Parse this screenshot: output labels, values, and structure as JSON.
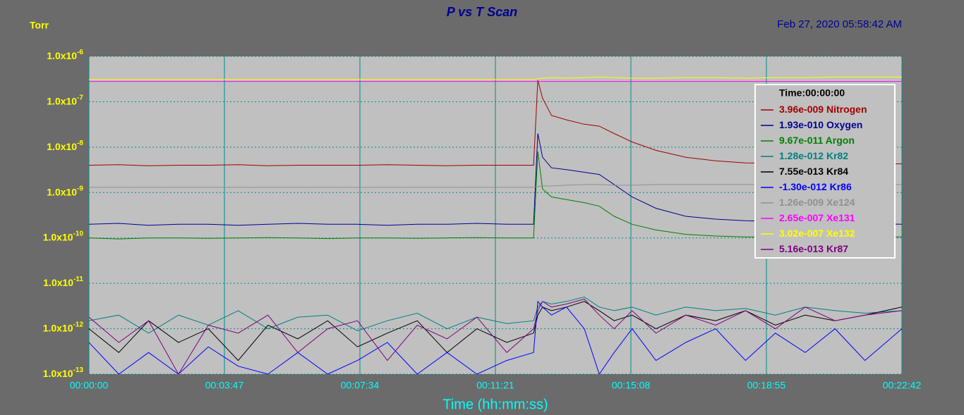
{
  "chart_data": {
    "type": "line",
    "title": "P vs T Scan",
    "unit_label": "Torr",
    "timestamp": "Feb 27, 2020  05:58:42 AM",
    "xlabel": "Time (hh:mm:ss)",
    "legend_title": "Time:00:00:00",
    "legend": "upper right",
    "log_y": true,
    "grid": true,
    "x": [
      0,
      50,
      100,
      150,
      200,
      250,
      300,
      350,
      400,
      450,
      500,
      550,
      600,
      650,
      700,
      745,
      752,
      760,
      775,
      800,
      830,
      855,
      880,
      910,
      950,
      1000,
      1050,
      1100,
      1150,
      1200,
      1250,
      1300,
      1362
    ],
    "xlim": [
      0,
      1362
    ],
    "xticks": [
      {
        "value": 0,
        "label": "00:00:00"
      },
      {
        "value": 227,
        "label": "00:03:47"
      },
      {
        "value": 454,
        "label": "00:07:34"
      },
      {
        "value": 681,
        "label": "00:11:21"
      },
      {
        "value": 908,
        "label": "00:15:08"
      },
      {
        "value": 1135,
        "label": "00:18:55"
      },
      {
        "value": 1362,
        "label": "00:22:42"
      }
    ],
    "ylim": [
      1e-13,
      1e-06
    ],
    "yticks": [
      {
        "value": 1e-06,
        "label": "1.0x10-6"
      },
      {
        "value": 1e-07,
        "label": "1.0x10-7"
      },
      {
        "value": 1e-08,
        "label": "1.0x10-8"
      },
      {
        "value": 1e-09,
        "label": "1.0x10-9"
      },
      {
        "value": 1e-10,
        "label": "1.0x10-10"
      },
      {
        "value": 1e-11,
        "label": "1.0x10-11"
      },
      {
        "value": 1e-12,
        "label": "1.0x10-12"
      },
      {
        "value": 1e-13,
        "label": "1.0x10-13"
      }
    ],
    "series": [
      {
        "name": "Nitrogen",
        "readout": "3.96e-009",
        "color": "#a00000",
        "values": [
          4e-09,
          4.1e-09,
          3.9e-09,
          4e-09,
          4e-09,
          4.1e-09,
          3.9e-09,
          4e-09,
          4e-09,
          4e-09,
          4.1e-09,
          4e-09,
          3.9e-09,
          4e-09,
          4e-09,
          4e-09,
          3e-07,
          1.2e-07,
          5e-08,
          4e-08,
          3.2e-08,
          2.9e-08,
          2e-08,
          1.3e-08,
          8.5e-09,
          6e-09,
          5e-09,
          4.5e-09,
          4.4e-09,
          4.3e-09,
          4.3e-09,
          4.3e-09,
          4.3e-09
        ]
      },
      {
        "name": "Oxygen",
        "readout": "1.93e-010",
        "color": "#000090",
        "values": [
          2e-10,
          2.1e-10,
          1.9e-10,
          2e-10,
          2e-10,
          1.9e-10,
          2e-10,
          2.1e-10,
          2e-10,
          2e-10,
          1.9e-10,
          2e-10,
          2e-10,
          2.1e-10,
          2e-10,
          2e-10,
          2e-08,
          6e-09,
          3.5e-09,
          3.2e-09,
          2.8e-09,
          2.5e-09,
          1.5e-09,
          8e-10,
          4.5e-10,
          3e-10,
          2.6e-10,
          2.4e-10,
          2.3e-10,
          2.2e-10,
          2.2e-10,
          2.1e-10,
          2e-10
        ]
      },
      {
        "name": "Argon",
        "readout": "9.67e-011",
        "color": "#008000",
        "values": [
          1e-10,
          9.5e-11,
          1e-10,
          1e-10,
          9.8e-11,
          1e-10,
          1.02e-10,
          1e-10,
          9.7e-11,
          1e-10,
          1e-10,
          9.8e-11,
          1e-10,
          1.02e-10,
          1e-10,
          1e-10,
          8e-09,
          1.2e-09,
          8e-10,
          7e-10,
          6e-10,
          5e-10,
          3e-10,
          2e-10,
          1.5e-10,
          1.2e-10,
          1.1e-10,
          1.05e-10,
          1.05e-10,
          1.05e-10,
          1.05e-10,
          1.05e-10,
          1.05e-10
        ]
      },
      {
        "name": "Kr82",
        "readout": "1.28e-012",
        "color": "#008080",
        "values": [
          1.5e-12,
          2e-12,
          8e-13,
          2e-12,
          1.2e-12,
          2.5e-12,
          1e-12,
          1.8e-12,
          2e-12,
          9e-13,
          1.5e-12,
          2.2e-12,
          1e-12,
          1.8e-12,
          1.3e-12,
          1.5e-12,
          3e-12,
          4e-12,
          3.5e-12,
          4e-12,
          5e-12,
          3e-12,
          2.5e-12,
          3e-12,
          2e-12,
          3e-12,
          2.5e-12,
          2.8e-12,
          2e-12,
          3e-12,
          2.5e-12,
          2.2e-12,
          2.5e-12
        ]
      },
      {
        "name": "Kr84",
        "readout": "7.55e-013",
        "color": "#000000",
        "values": [
          1e-12,
          3e-13,
          1.5e-12,
          5e-13,
          1e-12,
          2e-13,
          1.2e-12,
          6e-13,
          1.5e-12,
          4e-13,
          8e-13,
          1.5e-12,
          3e-13,
          1e-12,
          5e-13,
          8e-13,
          2e-12,
          3e-12,
          2.5e-12,
          3e-12,
          4e-12,
          2.5e-12,
          1.5e-12,
          2e-12,
          1e-12,
          2e-12,
          1.5e-12,
          2.5e-12,
          1.2e-12,
          2e-12,
          1.5e-12,
          2e-12,
          3e-12
        ]
      },
      {
        "name": "Kr86",
        "readout": "-1.30e-012",
        "color": "#0000ff",
        "values": [
          5e-13,
          1e-13,
          3e-13,
          1e-13,
          4e-13,
          1.5e-13,
          1e-13,
          3e-13,
          1e-13,
          2e-13,
          5e-13,
          1e-13,
          3e-13,
          1e-13,
          2e-13,
          3e-13,
          4e-12,
          3e-12,
          2e-12,
          3e-12,
          1e-12,
          1e-13,
          3e-13,
          1e-12,
          2e-13,
          5e-13,
          1e-12,
          2e-13,
          8e-13,
          3e-13,
          1e-12,
          2e-13,
          1e-12
        ]
      },
      {
        "name": "Xe124",
        "readout": "1.26e-009",
        "color": "#909090",
        "values": [
          1.3e-09,
          1.3e-09,
          1.3e-09,
          1.3e-09,
          1.3e-09,
          1.3e-09,
          1.3e-09,
          1.3e-09,
          1.3e-09,
          1.3e-09,
          1.3e-09,
          1.3e-09,
          1.3e-09,
          1.3e-09,
          1.3e-09,
          1.3e-09,
          1.35e-09,
          1.4e-09,
          1.4e-09,
          1.45e-09,
          1.5e-09,
          1.5e-09,
          1.45e-09,
          1.45e-09,
          1.5e-09,
          1.5e-09,
          1.5e-09,
          1.5e-09,
          1.5e-09,
          1.5e-09,
          1.5e-09,
          1.5e-09,
          1.5e-09
        ]
      },
      {
        "name": "Xe131",
        "readout": "2.65e-007",
        "color": "#ff00ff",
        "values": [
          2.8e-07,
          2.8e-07,
          2.8e-07,
          2.8e-07,
          2.8e-07,
          2.8e-07,
          2.8e-07,
          2.8e-07,
          2.8e-07,
          2.8e-07,
          2.8e-07,
          2.8e-07,
          2.8e-07,
          2.8e-07,
          2.8e-07,
          2.8e-07,
          2.8e-07,
          2.8e-07,
          2.8e-07,
          2.8e-07,
          2.8e-07,
          2.8e-07,
          2.8e-07,
          2.8e-07,
          2.8e-07,
          2.8e-07,
          2.8e-07,
          2.8e-07,
          2.8e-07,
          2.8e-07,
          2.8e-07,
          2.8e-07,
          2.8e-07
        ]
      },
      {
        "name": "Xe132",
        "readout": "3.02e-007",
        "color": "#ffff00",
        "values": [
          3.1e-07,
          3.1e-07,
          3.1e-07,
          3.1e-07,
          3.1e-07,
          3.1e-07,
          3.1e-07,
          3.1e-07,
          3.1e-07,
          3.1e-07,
          3.1e-07,
          3.1e-07,
          3.1e-07,
          3.1e-07,
          3.1e-07,
          3.1e-07,
          3.2e-07,
          3.3e-07,
          3.4e-07,
          3.3e-07,
          3.4e-07,
          3.5e-07,
          3.4e-07,
          3.3e-07,
          3.3e-07,
          3.4e-07,
          3.4e-07,
          3.3e-07,
          3.4e-07,
          3.4e-07,
          3.5e-07,
          3.5e-07,
          3.5e-07
        ]
      },
      {
        "name": "Kr87",
        "readout": "5.16e-013",
        "color": "#800080",
        "values": [
          1.8e-12,
          5e-13,
          1.5e-12,
          1e-13,
          1.2e-12,
          8e-13,
          2e-12,
          3e-13,
          1e-12,
          1.5e-12,
          2e-13,
          1.2e-12,
          6e-13,
          1.8e-12,
          3e-13,
          1e-12,
          2.5e-12,
          4e-12,
          3e-12,
          3.5e-12,
          4.5e-12,
          2e-12,
          1e-12,
          2.5e-12,
          8e-13,
          2e-12,
          1.2e-12,
          2.5e-12,
          1e-12,
          3e-12,
          1.5e-12,
          2e-12,
          2.5e-12
        ]
      }
    ]
  }
}
